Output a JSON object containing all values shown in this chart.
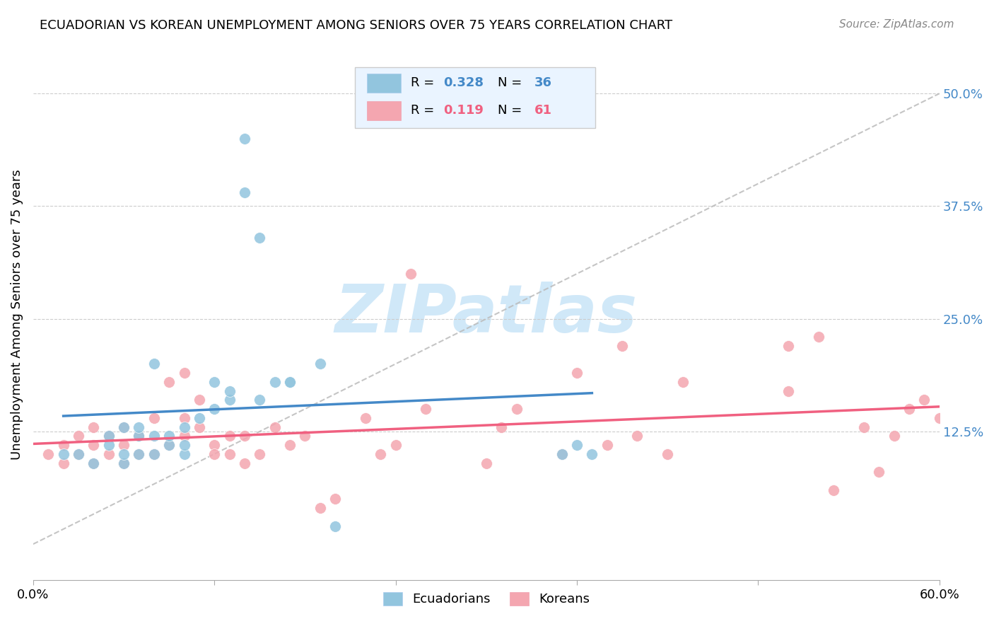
{
  "title": "ECUADORIAN VS KOREAN UNEMPLOYMENT AMONG SENIORS OVER 75 YEARS CORRELATION CHART",
  "source": "Source: ZipAtlas.com",
  "ylabel": "Unemployment Among Seniors over 75 years",
  "xlim": [
    0.0,
    0.6
  ],
  "ylim": [
    -0.04,
    0.55
  ],
  "xtick_labels": [
    "0.0%",
    "",
    "",
    "",
    "",
    "60.0%"
  ],
  "xtick_vals": [
    0.0,
    0.12,
    0.24,
    0.36,
    0.48,
    0.6
  ],
  "ytick_labels_right": [
    "50.0%",
    "37.5%",
    "25.0%",
    "12.5%"
  ],
  "ytick_vals_right": [
    0.5,
    0.375,
    0.25,
    0.125
  ],
  "ecu_R": "0.328",
  "ecu_N": "36",
  "kor_R": "0.119",
  "kor_N": "61",
  "ecu_color": "#92C5DE",
  "kor_color": "#F4A6B0",
  "ecu_line_color": "#4489C8",
  "kor_line_color": "#F06080",
  "dashed_line_color": "#BBBBBB",
  "legend_box_color": "#EAF4FF",
  "watermark_color": "#D0E8F8",
  "ecu_x": [
    0.02,
    0.03,
    0.04,
    0.05,
    0.05,
    0.06,
    0.06,
    0.06,
    0.07,
    0.07,
    0.07,
    0.08,
    0.08,
    0.08,
    0.09,
    0.09,
    0.1,
    0.1,
    0.1,
    0.11,
    0.12,
    0.12,
    0.13,
    0.13,
    0.14,
    0.14,
    0.15,
    0.15,
    0.16,
    0.17,
    0.17,
    0.19,
    0.2,
    0.35,
    0.36,
    0.37
  ],
  "ecu_y": [
    0.1,
    0.1,
    0.09,
    0.11,
    0.12,
    0.09,
    0.1,
    0.13,
    0.1,
    0.12,
    0.13,
    0.1,
    0.12,
    0.2,
    0.11,
    0.12,
    0.1,
    0.13,
    0.11,
    0.14,
    0.15,
    0.18,
    0.16,
    0.17,
    0.45,
    0.39,
    0.34,
    0.16,
    0.18,
    0.18,
    0.18,
    0.2,
    0.02,
    0.1,
    0.11,
    0.1
  ],
  "kor_x": [
    0.01,
    0.02,
    0.02,
    0.03,
    0.03,
    0.04,
    0.04,
    0.04,
    0.05,
    0.05,
    0.06,
    0.06,
    0.06,
    0.07,
    0.07,
    0.08,
    0.08,
    0.09,
    0.09,
    0.1,
    0.1,
    0.1,
    0.11,
    0.11,
    0.12,
    0.12,
    0.13,
    0.13,
    0.14,
    0.14,
    0.15,
    0.16,
    0.17,
    0.18,
    0.19,
    0.2,
    0.22,
    0.23,
    0.24,
    0.25,
    0.26,
    0.3,
    0.31,
    0.32,
    0.35,
    0.36,
    0.38,
    0.39,
    0.4,
    0.42,
    0.43,
    0.5,
    0.52,
    0.55,
    0.56,
    0.57,
    0.58,
    0.59,
    0.6,
    0.5,
    0.53
  ],
  "kor_y": [
    0.1,
    0.09,
    0.11,
    0.1,
    0.12,
    0.09,
    0.11,
    0.13,
    0.1,
    0.12,
    0.09,
    0.11,
    0.13,
    0.1,
    0.12,
    0.1,
    0.14,
    0.11,
    0.18,
    0.12,
    0.19,
    0.14,
    0.13,
    0.16,
    0.11,
    0.1,
    0.12,
    0.1,
    0.12,
    0.09,
    0.1,
    0.13,
    0.11,
    0.12,
    0.04,
    0.05,
    0.14,
    0.1,
    0.11,
    0.3,
    0.15,
    0.09,
    0.13,
    0.15,
    0.1,
    0.19,
    0.11,
    0.22,
    0.12,
    0.1,
    0.18,
    0.17,
    0.23,
    0.13,
    0.08,
    0.12,
    0.15,
    0.16,
    0.14,
    0.22,
    0.06
  ]
}
